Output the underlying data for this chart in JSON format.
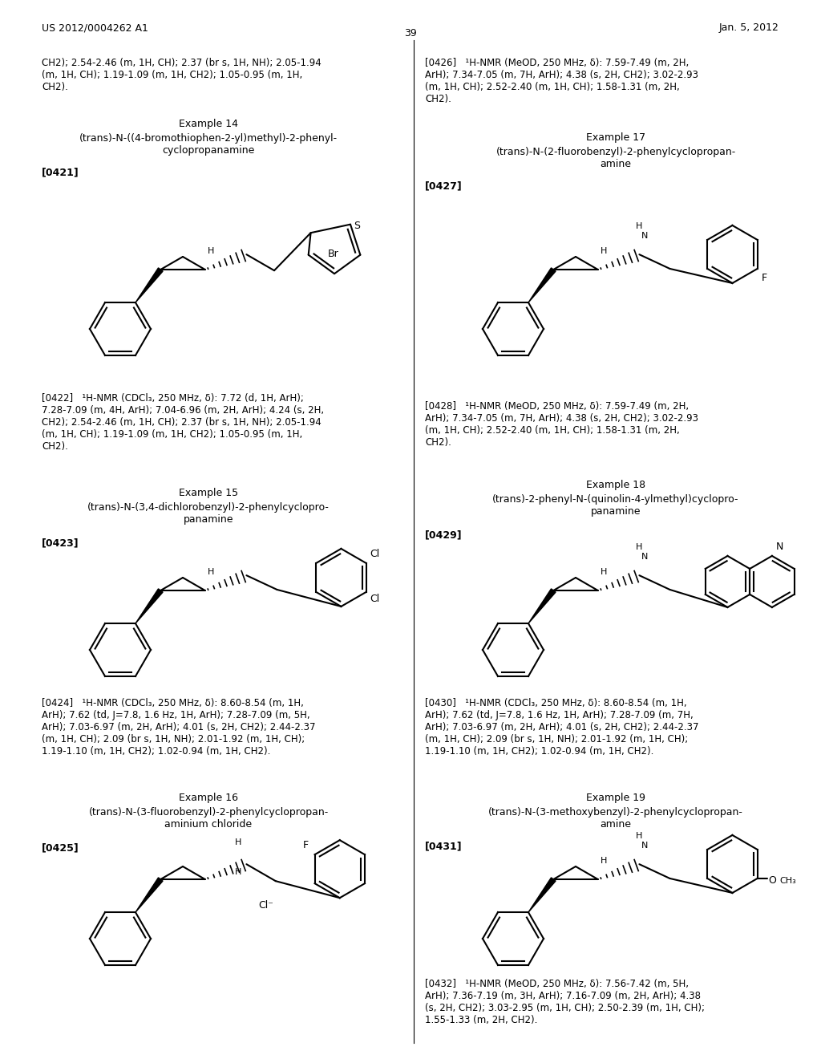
{
  "bg_color": "#ffffff",
  "header_left": "US 2012/0004262 A1",
  "header_right": "Jan. 5, 2012",
  "page_number": "39",
  "top_text_left": "CH2); 2.54-2.46 (m, 1H, CH); 2.37 (br s, 1H, NH); 2.05-1.94\n(m, 1H, CH); 1.19-1.09 (m, 1H, CH2); 1.05-0.95 (m, 1H,\nCH2).",
  "top_text_right": "[0426]   ¹H-NMR (MeOD, 250 MHz, δ): 7.59-7.49 (m, 2H,\nArH); 7.34-7.05 (m, 7H, ArH); 4.38 (s, 2H, CH2); 3.02-2.93\n(m, 1H, CH); 2.52-2.40 (m, 1H, CH); 1.58-1.31 (m, 2H,\nCH2).",
  "ex14_title": "Example 14",
  "ex14_subtitle": "(trans)-N-((4-bromothiophen-2-yl)methyl)-2-phenyl-\ncyclopropanamine",
  "ex14_ref": "[0421]",
  "ex14_nmr": "[0422]   ¹H-NMR (CDCl₃, 250 MHz, δ): 7.72 (d, 1H, ArH);\n7.28-7.09 (m, 4H, ArH); 7.04-6.96 (m, 2H, ArH); 4.24 (s, 2H,\nCH2); 2.54-2.46 (m, 1H, CH); 2.37 (br s, 1H, NH); 2.05-1.94\n(m, 1H, CH); 1.19-1.09 (m, 1H, CH2); 1.05-0.95 (m, 1H,\nCH2).",
  "ex15_title": "Example 15",
  "ex15_subtitle": "(trans)-N-(3,4-dichlorobenzyl)-2-phenylcyclopro-\npanamine",
  "ex15_ref": "[0423]",
  "ex15_nmr": "[0424]   ¹H-NMR (CDCl₃, 250 MHz, δ): 8.60-8.54 (m, 1H,\nArH); 7.62 (td, J=7.8, 1.6 Hz, 1H, ArH); 7.28-7.09 (m, 5H,\nArH); 7.03-6.97 (m, 2H, ArH); 4.01 (s, 2H, CH2); 2.44-2.37\n(m, 1H, CH); 2.09 (br s, 1H, NH); 2.01-1.92 (m, 1H, CH);\n1.19-1.10 (m, 1H, CH2); 1.02-0.94 (m, 1H, CH2).",
  "ex16_title": "Example 16",
  "ex16_subtitle": "(trans)-N-(3-fluorobenzyl)-2-phenylcyclopropan-\naminium chloride",
  "ex16_ref": "[0425]",
  "ex17_title": "Example 17",
  "ex17_subtitle": "(trans)-N-(2-fluorobenzyl)-2-phenylcyclopropan-\namine",
  "ex17_ref": "[0427]",
  "ex17_nmr": "[0428]   ¹H-NMR (MeOD, 250 MHz, δ): 7.59-7.49 (m, 2H,\nArH); 7.34-7.05 (m, 7H, ArH); 4.38 (s, 2H, CH2); 3.02-2.93\n(m, 1H, CH); 2.52-2.40 (m, 1H, CH); 1.58-1.31 (m, 2H,\nCH2).",
  "ex18_title": "Example 18",
  "ex18_subtitle": "(trans)-2-phenyl-N-(quinolin-4-ylmethyl)cyclopro-\npanamine",
  "ex18_ref": "[0429]",
  "ex18_nmr": "[0430]   ¹H-NMR (CDCl₃, 250 MHz, δ): 8.60-8.54 (m, 1H,\nArH); 7.62 (td, J=7.8, 1.6 Hz, 1H, ArH); 7.28-7.09 (m, 7H,\nArH); 7.03-6.97 (m, 2H, ArH); 4.01 (s, 2H, CH2); 2.44-2.37\n(m, 1H, CH); 2.09 (br s, 1H, NH); 2.01-1.92 (m, 1H, CH);\n1.19-1.10 (m, 1H, CH2); 1.02-0.94 (m, 1H, CH2).",
  "ex19_title": "Example 19",
  "ex19_subtitle": "(trans)-N-(3-methoxybenzyl)-2-phenylcyclopropan-\namine",
  "ex19_ref": "[0431]",
  "ex19_nmr": "[0432]   ¹H-NMR (MeOD, 250 MHz, δ): 7.56-7.42 (m, 5H,\nArH); 7.36-7.19 (m, 3H, ArH); 7.16-7.09 (m, 2H, ArH); 4.38\n(s, 2H, CH2); 3.03-2.95 (m, 1H, CH); 2.50-2.39 (m, 1H, CH);\n1.55-1.33 (m, 2H, CH2)."
}
